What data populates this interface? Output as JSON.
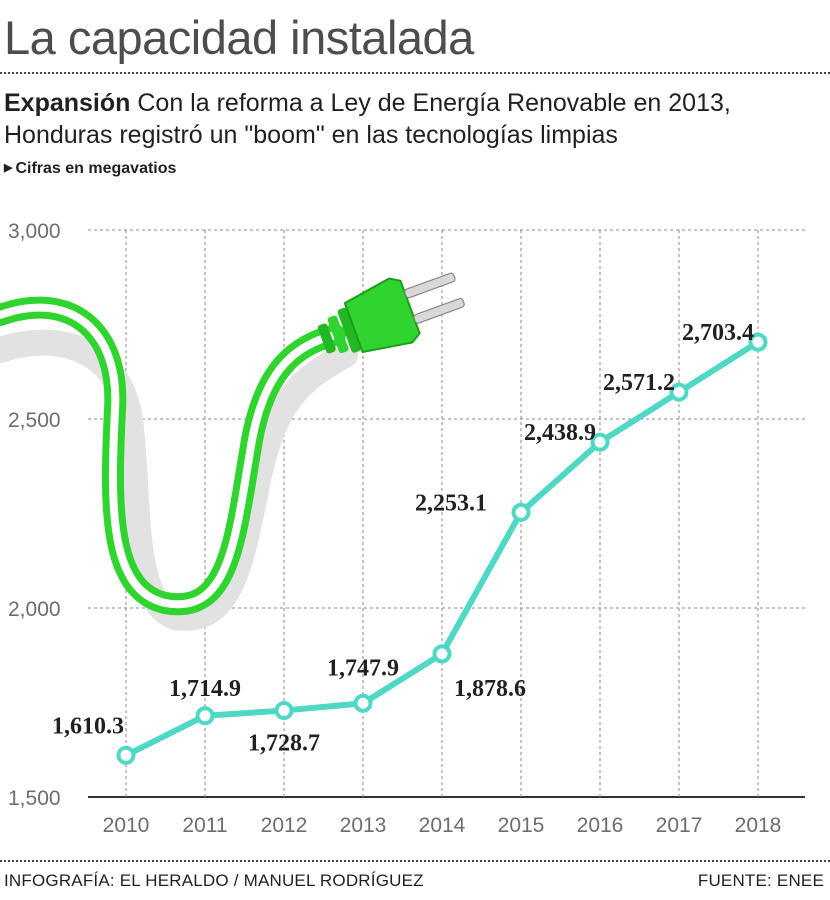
{
  "header": {
    "title": "La capacidad instalada",
    "subtitle_keyword": "Expansión",
    "subtitle_line1": "Con la reforma a Ley de Energía Renovable en 2013,",
    "subtitle_line2": "Honduras registró un \"boom\" en las tecnologías limpias",
    "unit_note": "Cifras en megavatios"
  },
  "footer": {
    "credit": "INFOGRAFÍA: EL HERALDO / MANUEL RODRÍGUEZ",
    "source": "FUENTE: ENEE"
  },
  "colors": {
    "line": "#4fd8c4",
    "plug": "#2fd42f",
    "grid": "#8a8a8a",
    "text": "#231f20"
  },
  "chart_data": {
    "type": "line",
    "title": "La capacidad instalada",
    "xlabel": "",
    "ylabel": "",
    "x": [
      "2010",
      "2011",
      "2012",
      "2013",
      "2014",
      "2015",
      "2016",
      "2017",
      "2018"
    ],
    "series": [
      {
        "values": [
          1610.3,
          1714.9,
          1728.7,
          1747.9,
          1878.6,
          2253.1,
          2438.9,
          2571.2,
          2703.4
        ],
        "labels": [
          "1,610.3",
          "1,714.9",
          "1,728.7",
          "1,747.9",
          "1,878.6",
          "2,253.1",
          "2,438.9",
          "2,571.2",
          "2,703.4"
        ]
      }
    ],
    "ylim": [
      1500,
      3000
    ],
    "yticks": [
      1500,
      2000,
      2500,
      3000
    ],
    "ytick_labels": [
      "1,500",
      "2,000",
      "2,500",
      "3,000"
    ],
    "grid": true,
    "legend": "none",
    "decoration": "plug-icon"
  }
}
